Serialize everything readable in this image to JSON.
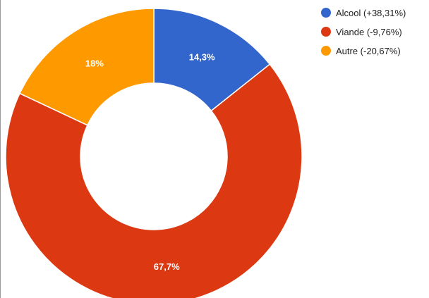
{
  "chart_data": {
    "type": "pie",
    "donut": true,
    "title": "",
    "legend_position": "right",
    "slices": [
      {
        "label": "Alcool (+38,31%)",
        "value": 14.3,
        "value_label": "14,3%",
        "color": "#3366cc"
      },
      {
        "label": "Viande (-9,76%)",
        "value": 67.7,
        "value_label": "67,7%",
        "color": "#dc3912"
      },
      {
        "label": "Autre (-20,67%)",
        "value": 18,
        "value_label": "18%",
        "color": "#ff9900"
      }
    ]
  }
}
